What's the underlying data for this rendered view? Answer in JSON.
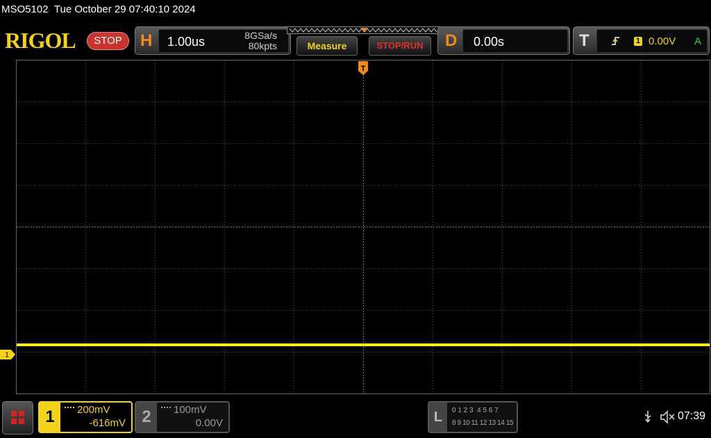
{
  "status_bar": {
    "model": "MSO5102",
    "datetime": "Tue October 29 07:40:10 2024"
  },
  "toolbar": {
    "brand": "RIGOL",
    "run_state": "STOP",
    "horizontal": {
      "label": "H",
      "timebase": "1.00us",
      "sample_rate": "8GSa/s",
      "memory_depth": "80kpts"
    },
    "buttons": [
      "Measure",
      "STOP/RUN"
    ],
    "delay": {
      "label": "D",
      "value": "0.00s"
    },
    "trigger": {
      "label": "T",
      "source": "1",
      "level": "0.00V",
      "mode": "A"
    }
  },
  "screen": {
    "trigger_marker": "T",
    "channel_marker": "1"
  },
  "channels": [
    {
      "number": "1",
      "scale": "200mV",
      "offset": "-616mV"
    },
    {
      "number": "2",
      "scale": "100mV",
      "offset": "0.00V"
    }
  ],
  "logic": {
    "label": "L",
    "row1": "0 1 2 3  4 5 6 7",
    "row2": "8 9 10 11 12 13 14 15"
  },
  "clock": "07:39"
}
